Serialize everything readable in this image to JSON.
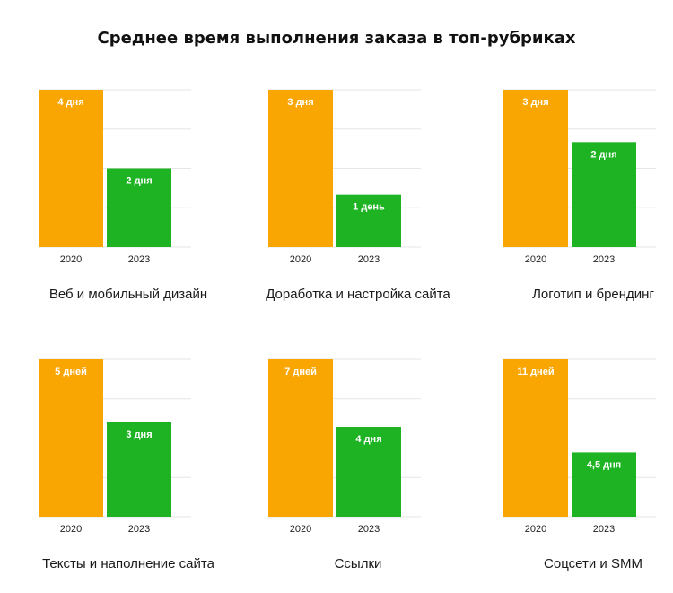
{
  "title": "Среднее время выполнения заказа в топ-рубриках",
  "colors": {
    "y2020": "#F9A602",
    "y2023": "#1DB322",
    "grid": "#e6e6e6"
  },
  "chart_data": [
    {
      "type": "bar",
      "caption": "Веб и мобильный дизайн",
      "categories": [
        "2020",
        "2023"
      ],
      "values": [
        4,
        2
      ],
      "labels": [
        "4 дня",
        "2 дня"
      ]
    },
    {
      "type": "bar",
      "caption": "Доработка и настройка сайта",
      "categories": [
        "2020",
        "2023"
      ],
      "values": [
        3,
        1
      ],
      "labels": [
        "3 дня",
        "1 день"
      ]
    },
    {
      "type": "bar",
      "caption": "Логотип и брендинг",
      "categories": [
        "2020",
        "2023"
      ],
      "values": [
        3,
        2
      ],
      "labels": [
        "3 дня",
        "2 дня"
      ]
    },
    {
      "type": "bar",
      "caption": "Тексты и наполнение сайта",
      "categories": [
        "2020",
        "2023"
      ],
      "values": [
        5,
        3
      ],
      "labels": [
        "5 дней",
        "3 дня"
      ]
    },
    {
      "type": "bar",
      "caption": "Ссылки",
      "categories": [
        "2020",
        "2023"
      ],
      "values": [
        7,
        4
      ],
      "labels": [
        "7 дней",
        "4 дня"
      ]
    },
    {
      "type": "bar",
      "caption": "Соцсети и SMM",
      "categories": [
        "2020",
        "2023"
      ],
      "values": [
        11,
        4.5
      ],
      "labels": [
        "11 дней",
        "4,5 дня"
      ]
    }
  ]
}
